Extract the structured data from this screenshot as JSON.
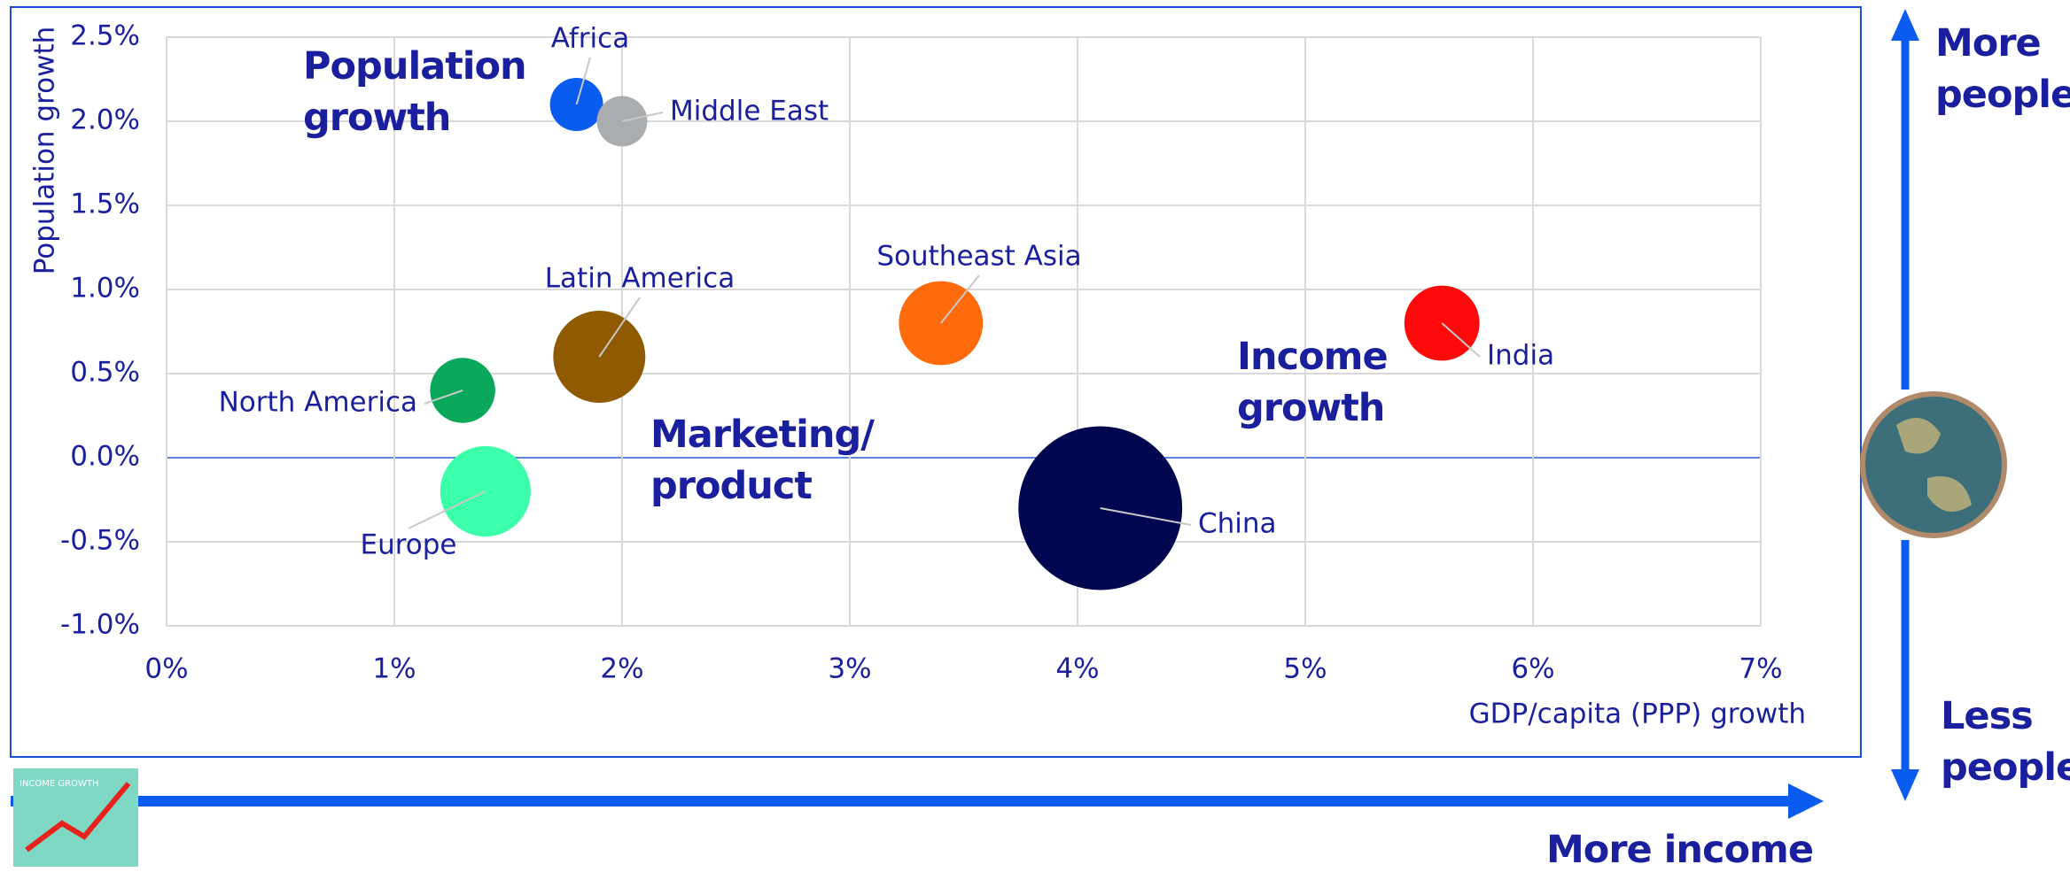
{
  "chart_data": {
    "type": "bubble",
    "x_label": "GDP/capita (PPP) growth",
    "y_label": "Population growth",
    "xlim": [
      0,
      7
    ],
    "ylim": [
      -1.0,
      2.5
    ],
    "xticks": [
      {
        "value": 0,
        "label": "0%"
      },
      {
        "value": 1,
        "label": "1%"
      },
      {
        "value": 2,
        "label": "2%"
      },
      {
        "value": 3,
        "label": "3%"
      },
      {
        "value": 4,
        "label": "4%"
      },
      {
        "value": 5,
        "label": "5%"
      },
      {
        "value": 6,
        "label": "6%"
      },
      {
        "value": 7,
        "label": "7%"
      }
    ],
    "yticks": [
      {
        "value": -1.0,
        "label": "-1.0%"
      },
      {
        "value": -0.5,
        "label": "-0.5%"
      },
      {
        "value": 0,
        "label": "0.0%"
      },
      {
        "value": 0.5,
        "label": "0.5%"
      },
      {
        "value": 1.0,
        "label": "1.0%"
      },
      {
        "value": 1.5,
        "label": "1.5%"
      },
      {
        "value": 2.0,
        "label": "2.0%"
      },
      {
        "value": 2.5,
        "label": "2.5%"
      }
    ],
    "grid": true,
    "points": [
      {
        "name": "Africa",
        "x": 1.8,
        "y": 2.1,
        "size": 4,
        "color": "#0a5cf0"
      },
      {
        "name": "Middle East",
        "x": 2.0,
        "y": 2.0,
        "size": 3.6,
        "color": "#a9adb0"
      },
      {
        "name": "Latin America",
        "x": 1.9,
        "y": 0.6,
        "size": 12,
        "color": "#8f5a00"
      },
      {
        "name": "Southeast Asia",
        "x": 3.4,
        "y": 0.8,
        "size": 10,
        "color": "#ff6a0a"
      },
      {
        "name": "India",
        "x": 5.6,
        "y": 0.8,
        "size": 8,
        "color": "#ff0a0a"
      },
      {
        "name": "North America",
        "x": 1.3,
        "y": 0.4,
        "size": 6,
        "color": "#0aa85a"
      },
      {
        "name": "Europe",
        "x": 1.4,
        "y": -0.2,
        "size": 11.6,
        "color": "#3cffaa"
      },
      {
        "name": "China",
        "x": 4.1,
        "y": -0.3,
        "size": 38,
        "color": "#00064f"
      }
    ],
    "annotations": [
      "Population growth",
      "Marketing/ product",
      "Income growth"
    ],
    "side_labels": {
      "up": "More people",
      "down": "Less people",
      "right": "More income"
    },
    "icon_label": "INCOME GROWTH"
  }
}
